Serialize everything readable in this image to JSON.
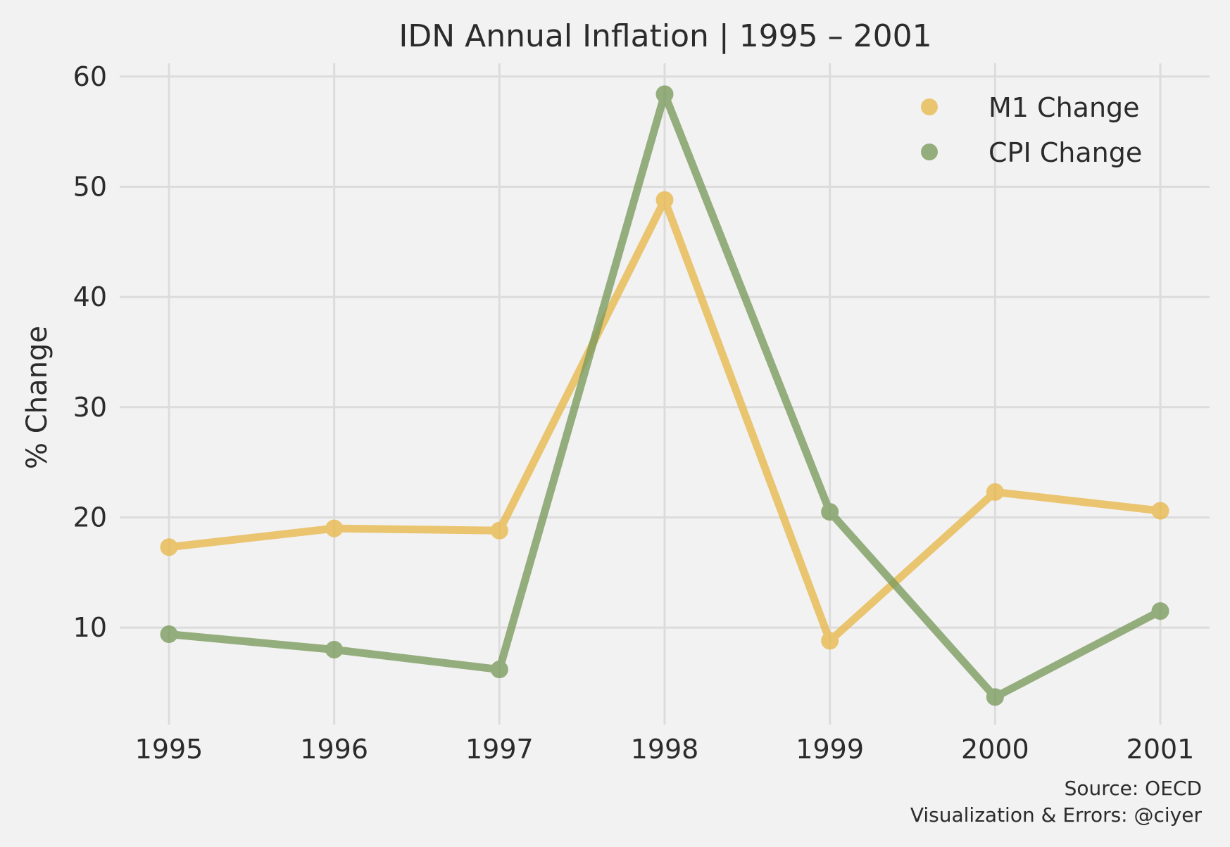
{
  "chart_data": {
    "type": "line",
    "title": "IDN Annual Inflation | 1995 – 2001",
    "xlabel": "",
    "ylabel": "% Change",
    "x": [
      "1995",
      "1996",
      "1997",
      "1998",
      "1999",
      "2000",
      "2001"
    ],
    "y_ticks": [
      10,
      20,
      30,
      40,
      50,
      60
    ],
    "ylim": [
      1.2,
      61.2
    ],
    "grid": true,
    "legend_position": "top-right",
    "series": [
      {
        "name": "M1 Change",
        "color": "#e8b84b",
        "values": [
          17.3,
          19.0,
          18.8,
          48.8,
          8.8,
          22.3,
          20.6
        ]
      },
      {
        "name": "CPI Change",
        "color": "#7a9a5c",
        "values": [
          9.4,
          8.0,
          6.2,
          58.4,
          20.5,
          3.7,
          11.5
        ]
      }
    ],
    "annotations": [
      "Source: OECD",
      "Visualization & Errors: @ciyer"
    ]
  }
}
